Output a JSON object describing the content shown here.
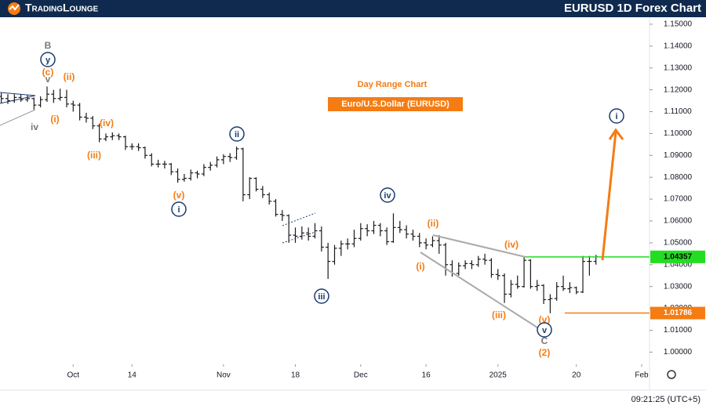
{
  "header": {
    "logo": "TradingLounge",
    "title": "EURUSD 1D Forex Chart"
  },
  "chart_data": {
    "type": "ohlc",
    "subtitle": "Day Range Chart",
    "instrument": "Euro/U.S.Dollar (EURUSD)",
    "bar_color": "#1a1a1a",
    "open": [
      1.117,
      1.116,
      1.115,
      1.1165,
      1.1155,
      1.116,
      1.113,
      1.1155,
      1.118,
      1.116,
      1.1165,
      1.1135,
      1.113,
      1.1075,
      1.107,
      1.1035,
      1.0975,
      1.0985,
      1.099,
      1.0985,
      1.094,
      1.094,
      1.0935,
      1.09,
      1.086,
      1.086,
      1.086,
      1.0825,
      1.079,
      1.0795,
      1.082,
      1.0815,
      1.0845,
      1.0855,
      1.088,
      1.0895,
      1.089,
      1.093,
      1.072,
      1.0795,
      1.0745,
      1.072,
      1.069,
      1.063,
      1.0625,
      1.0535,
      1.053,
      1.0545,
      1.053,
      1.0555,
      1.048,
      1.0415,
      1.0475,
      1.0495,
      1.0495,
      1.052,
      1.0565,
      1.0555,
      1.058,
      1.0555,
      1.0505,
      1.057,
      1.056,
      1.054,
      1.053,
      1.05,
      1.049,
      1.051,
      1.049,
      1.04,
      1.036,
      1.0395,
      1.0405,
      1.04,
      1.0425,
      1.042,
      1.0355,
      1.035,
      1.0265,
      1.031,
      1.03,
      1.042,
      1.03,
      1.0305,
      1.024,
      1.0245,
      1.03,
      1.029,
      1.0295,
      1.0275,
      1.0415,
      1.0415
    ],
    "high": [
      1.1185,
      1.118,
      1.118,
      1.118,
      1.1175,
      1.1165,
      1.117,
      1.1215,
      1.12,
      1.1205,
      1.12,
      1.115,
      1.114,
      1.1095,
      1.108,
      1.1045,
      1.1,
      1.1005,
      1.1,
      1.099,
      1.0955,
      1.0955,
      1.094,
      1.091,
      1.088,
      1.0875,
      1.0865,
      1.084,
      1.0815,
      1.0835,
      1.083,
      1.086,
      1.087,
      1.0895,
      1.0905,
      1.091,
      1.094,
      1.0935,
      1.08,
      1.08,
      1.076,
      1.073,
      1.07,
      1.065,
      1.063,
      1.057,
      1.0575,
      1.057,
      1.059,
      1.0575,
      1.05,
      1.049,
      1.051,
      1.052,
      1.056,
      1.059,
      1.0585,
      1.06,
      1.059,
      1.057,
      1.0635,
      1.06,
      1.058,
      1.056,
      1.0545,
      1.052,
      1.053,
      1.0535,
      1.05,
      1.042,
      1.041,
      1.042,
      1.042,
      1.044,
      1.045,
      1.043,
      1.038,
      1.036,
      1.033,
      1.035,
      1.044,
      1.0425,
      1.033,
      1.031,
      1.0265,
      1.032,
      1.035,
      1.032,
      1.03,
      1.044,
      1.044,
      1.0445
    ],
    "low": [
      1.114,
      1.1135,
      1.114,
      1.1145,
      1.1145,
      1.111,
      1.112,
      1.1145,
      1.114,
      1.115,
      1.112,
      1.11,
      1.106,
      1.105,
      1.102,
      1.096,
      1.0965,
      1.097,
      1.097,
      1.0925,
      1.0925,
      1.092,
      1.0885,
      1.085,
      1.0845,
      1.084,
      1.081,
      1.0775,
      1.078,
      1.0785,
      1.0795,
      1.0805,
      1.083,
      1.0845,
      1.086,
      1.087,
      1.088,
      1.069,
      1.07,
      1.0735,
      1.0705,
      1.0675,
      1.062,
      1.06,
      1.05,
      1.05,
      1.0515,
      1.051,
      1.052,
      1.046,
      1.0335,
      1.04,
      1.044,
      1.047,
      1.048,
      1.051,
      1.053,
      1.054,
      1.053,
      1.049,
      1.05,
      1.0545,
      1.052,
      1.051,
      1.048,
      1.047,
      1.048,
      1.045,
      1.035,
      1.0345,
      1.035,
      1.038,
      1.038,
      1.039,
      1.04,
      1.034,
      1.033,
      1.0225,
      1.025,
      1.029,
      1.0295,
      1.029,
      1.028,
      1.022,
      1.0178,
      1.0235,
      1.028,
      1.027,
      1.0265,
      1.027,
      1.035,
      1.04
    ],
    "close": [
      1.116,
      1.115,
      1.1165,
      1.1155,
      1.116,
      1.113,
      1.1155,
      1.118,
      1.116,
      1.1165,
      1.1135,
      1.113,
      1.1075,
      1.107,
      1.1035,
      1.0975,
      1.0985,
      1.099,
      1.0985,
      1.094,
      1.094,
      1.0935,
      1.09,
      1.086,
      1.086,
      1.086,
      1.0825,
      1.079,
      1.0795,
      1.082,
      1.0815,
      1.0845,
      1.0855,
      1.088,
      1.0895,
      1.089,
      1.093,
      1.072,
      1.0795,
      1.0745,
      1.072,
      1.069,
      1.063,
      1.0625,
      1.0535,
      1.053,
      1.0545,
      1.053,
      1.0555,
      1.048,
      1.0415,
      1.0475,
      1.0495,
      1.0495,
      1.052,
      1.0565,
      1.0555,
      1.058,
      1.0555,
      1.0505,
      1.057,
      1.056,
      1.054,
      1.053,
      1.05,
      1.049,
      1.051,
      1.049,
      1.04,
      1.036,
      1.0395,
      1.0405,
      1.04,
      1.0425,
      1.042,
      1.0355,
      1.035,
      1.0265,
      1.031,
      1.03,
      1.042,
      1.03,
      1.0305,
      1.024,
      1.0245,
      1.03,
      1.029,
      1.0295,
      1.0275,
      1.0415,
      1.0415,
      1.0436
    ],
    "xlim": [
      -0.2,
      99.2
    ],
    "xticks": [
      {
        "value": 11,
        "label": "Oct"
      },
      {
        "value": 20,
        "label": "14"
      },
      {
        "value": 34,
        "label": "Nov"
      },
      {
        "value": 45,
        "label": "18"
      },
      {
        "value": 55,
        "label": "Dec"
      },
      {
        "value": 65,
        "label": "16"
      },
      {
        "value": 76,
        "label": "2025"
      },
      {
        "value": 88,
        "label": "20"
      },
      {
        "value": 98,
        "label": "Feb"
      }
    ],
    "ylim": [
      0.9944,
      1.1532
    ],
    "yticks": [
      {
        "value": 1.15,
        "label": "1.15000"
      },
      {
        "value": 1.14,
        "label": "1.14000"
      },
      {
        "value": 1.13,
        "label": "1.13000"
      },
      {
        "value": 1.12,
        "label": "1.12000"
      },
      {
        "value": 1.11,
        "label": "1.11000"
      },
      {
        "value": 1.1,
        "label": "1.10000"
      },
      {
        "value": 1.09,
        "label": "1.09000"
      },
      {
        "value": 1.08,
        "label": "1.08000"
      },
      {
        "value": 1.07,
        "label": "1.07000"
      },
      {
        "value": 1.06,
        "label": "1.06000"
      },
      {
        "value": 1.05,
        "label": "1.05000"
      },
      {
        "value": 1.04,
        "label": "1.04000"
      },
      {
        "value": 1.03,
        "label": "1.03000"
      },
      {
        "value": 1.02,
        "label": "1.02000"
      },
      {
        "value": 1.01,
        "label": "1.01000"
      },
      {
        "value": 1.0,
        "label": "1.00000"
      }
    ],
    "levels": [
      {
        "value": 1.04357,
        "color": "#22dd22"
      },
      {
        "value": 1.01786,
        "color": "#f57c12"
      }
    ],
    "annotations": [
      "B",
      "y",
      "v",
      "(c)",
      "(ii)",
      "(i)",
      "iv",
      "(iv)",
      "(iii)",
      "(v)",
      "i",
      "ii",
      "iii",
      "iv",
      "(ii)",
      "(i)",
      "(iv)",
      "(iii)",
      "(v)",
      "v",
      "C",
      "(2)",
      "i"
    ],
    "time": "09:21:25 (UTC+5)"
  }
}
